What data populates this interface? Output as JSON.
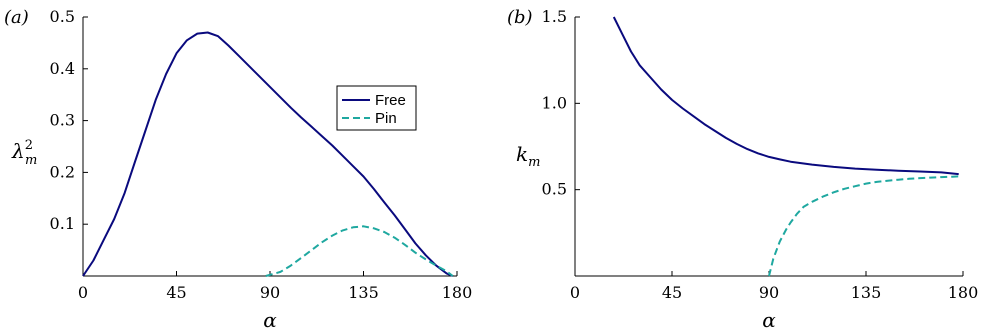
{
  "chart_data": [
    {
      "type": "line",
      "panel_label": "(a)",
      "xlabel": "α",
      "ylabel_main": "λ",
      "ylabel_sup": "2",
      "ylabel_sub": "m",
      "xlim": [
        0,
        180
      ],
      "ylim": [
        0,
        0.5
      ],
      "xticks": [
        0,
        45,
        90,
        135,
        180
      ],
      "xtick_labels": [
        "0",
        "45",
        "90",
        "135",
        "180"
      ],
      "yticks": [
        0.1,
        0.2,
        0.3,
        0.4,
        0.5
      ],
      "ytick_labels": [
        "0.1",
        "0.2",
        "0.3",
        "0.4",
        "0.5"
      ],
      "legend": {
        "position": "center-right",
        "entries": [
          "Free",
          "Pin"
        ]
      },
      "series": [
        {
          "name": "Free",
          "color": "#0a0a7e",
          "style": "solid",
          "x": [
            0,
            5,
            10,
            15,
            20,
            25,
            30,
            35,
            40,
            45,
            50,
            55,
            60,
            65,
            70,
            75,
            80,
            85,
            90,
            95,
            100,
            105,
            110,
            115,
            120,
            125,
            130,
            135,
            140,
            145,
            150,
            155,
            160,
            165,
            170,
            175,
            178
          ],
          "y": [
            0.0,
            0.03,
            0.07,
            0.11,
            0.16,
            0.22,
            0.28,
            0.34,
            0.39,
            0.43,
            0.455,
            0.468,
            0.47,
            0.463,
            0.445,
            0.425,
            0.405,
            0.385,
            0.365,
            0.345,
            0.325,
            0.306,
            0.288,
            0.27,
            0.252,
            0.232,
            0.212,
            0.192,
            0.168,
            0.142,
            0.117,
            0.09,
            0.063,
            0.04,
            0.02,
            0.005,
            0.0
          ]
        },
        {
          "name": "Pin",
          "color": "#1fa8a0",
          "style": "dashed",
          "x": [
            88,
            95,
            100,
            105,
            110,
            115,
            120,
            125,
            130,
            135,
            140,
            145,
            150,
            155,
            160,
            165,
            170,
            175,
            178
          ],
          "y": [
            0.0,
            0.008,
            0.02,
            0.035,
            0.05,
            0.065,
            0.078,
            0.088,
            0.094,
            0.096,
            0.092,
            0.085,
            0.074,
            0.06,
            0.045,
            0.032,
            0.02,
            0.009,
            0.0
          ]
        }
      ]
    },
    {
      "type": "line",
      "panel_label": "(b)",
      "xlabel": "α",
      "ylabel_main": "k",
      "ylabel_sub": "m",
      "xlim": [
        0,
        180
      ],
      "ylim": [
        0,
        1.5
      ],
      "xticks": [
        0,
        45,
        90,
        135,
        180
      ],
      "xtick_labels": [
        "0",
        "45",
        "90",
        "135",
        "180"
      ],
      "yticks": [
        0.5,
        1.0,
        1.5
      ],
      "ytick_labels": [
        "0.5",
        "1.0",
        "1.5"
      ],
      "series": [
        {
          "name": "Free",
          "color": "#0a0a7e",
          "style": "solid",
          "x": [
            18,
            22,
            26,
            30,
            35,
            40,
            45,
            50,
            55,
            60,
            65,
            70,
            75,
            80,
            85,
            90,
            95,
            100,
            110,
            120,
            130,
            140,
            150,
            160,
            170,
            178
          ],
          "y": [
            1.5,
            1.4,
            1.3,
            1.22,
            1.15,
            1.08,
            1.02,
            0.97,
            0.925,
            0.88,
            0.84,
            0.8,
            0.765,
            0.735,
            0.71,
            0.69,
            0.675,
            0.662,
            0.645,
            0.632,
            0.622,
            0.615,
            0.61,
            0.605,
            0.6,
            0.59
          ]
        },
        {
          "name": "Pin",
          "color": "#1fa8a0",
          "style": "dashed",
          "x": [
            90,
            92,
            95,
            98,
            100,
            103,
            106,
            110,
            115,
            120,
            125,
            130,
            135,
            140,
            145,
            150,
            155,
            160,
            165,
            170,
            175,
            178
          ],
          "y": [
            0.0,
            0.1,
            0.2,
            0.27,
            0.31,
            0.36,
            0.4,
            0.43,
            0.46,
            0.485,
            0.505,
            0.52,
            0.535,
            0.545,
            0.552,
            0.558,
            0.563,
            0.567,
            0.57,
            0.573,
            0.575,
            0.577
          ]
        }
      ]
    }
  ]
}
